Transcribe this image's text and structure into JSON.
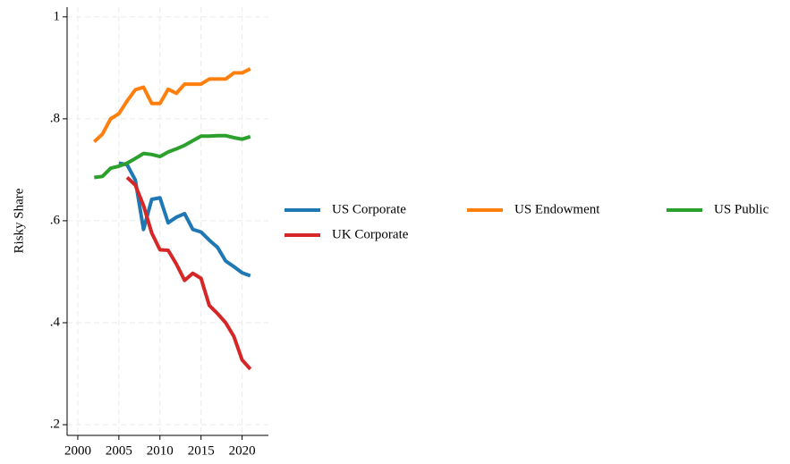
{
  "chart_data": {
    "type": "line",
    "y_label": "Risky Share",
    "x": [
      2002,
      2003,
      2004,
      2005,
      2006,
      2007,
      2008,
      2009,
      2010,
      2011,
      2012,
      2013,
      2014,
      2015,
      2016,
      2017,
      2018,
      2019,
      2020,
      2021
    ],
    "series": [
      {
        "name": "US Corporate",
        "color": "#1f77b4",
        "values": [
          null,
          null,
          null,
          0.713,
          0.71,
          0.68,
          0.583,
          0.642,
          0.645,
          0.596,
          0.607,
          0.614,
          0.583,
          0.578,
          0.562,
          0.548,
          0.521,
          0.51,
          0.498,
          0.492
        ]
      },
      {
        "name": "US Endowment",
        "color": "#ff7f0e",
        "values": [
          0.755,
          0.77,
          0.8,
          0.81,
          0.835,
          0.857,
          0.862,
          0.83,
          0.83,
          0.858,
          0.85,
          0.868,
          0.868,
          0.868,
          0.878,
          0.878,
          0.878,
          0.89,
          0.89,
          0.898
        ]
      },
      {
        "name": "US Public",
        "color": "#2ca02c",
        "values": [
          0.685,
          0.687,
          0.703,
          0.707,
          0.713,
          0.722,
          0.732,
          0.73,
          0.726,
          0.735,
          0.741,
          0.748,
          0.757,
          0.766,
          0.766,
          0.767,
          0.767,
          0.763,
          0.76,
          0.765
        ]
      },
      {
        "name": "UK Corporate",
        "color": "#d62728",
        "values": [
          null,
          null,
          null,
          null,
          0.685,
          0.67,
          0.63,
          0.576,
          0.543,
          0.542,
          0.515,
          0.483,
          0.497,
          0.487,
          0.434,
          0.418,
          0.4,
          0.373,
          0.327,
          0.309
        ]
      }
    ],
    "xlim": [
      1998.7,
      2023.2
    ],
    "ylim": [
      0.179,
      1.019
    ],
    "xticks": [
      2000,
      2005,
      2010,
      2015,
      2020
    ],
    "yticks": [
      {
        "value": 0.2,
        "label": ".2"
      },
      {
        "value": 0.4,
        "label": ".4"
      },
      {
        "value": 0.6,
        "label": ".6"
      },
      {
        "value": 0.8,
        "label": ".8"
      },
      {
        "value": 1,
        "label": "1"
      }
    ],
    "grid": true
  }
}
